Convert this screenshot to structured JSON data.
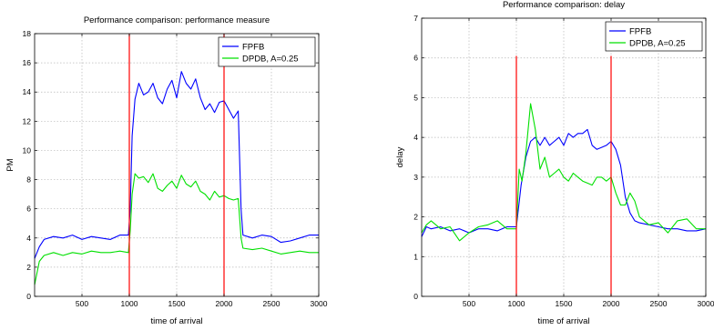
{
  "chart_data": [
    {
      "type": "line",
      "title": "Performance comparison: performance measure",
      "xlabel": "time of arrival",
      "ylabel": "PM",
      "xlim": [
        0,
        3000
      ],
      "ylim": [
        0,
        18
      ],
      "xticks": [
        500,
        1000,
        1500,
        2000,
        2500,
        3000
      ],
      "xtick_labels": [
        "500",
        "1000",
        "1500",
        "2000",
        "2500",
        "3000"
      ],
      "yticks": [
        0,
        2,
        4,
        6,
        8,
        10,
        12,
        14,
        16,
        18
      ],
      "ytick_labels": [
        "0",
        "2",
        "4",
        "6",
        "8",
        "10",
        "12",
        "14",
        "16",
        "18"
      ],
      "grid": true,
      "legend_position": "top-right",
      "vlines": [
        1000,
        2000
      ],
      "vline_color": "#ff0000",
      "series": [
        {
          "name": "FPFB",
          "color": "#0000ff",
          "x": [
            0,
            50,
            100,
            200,
            300,
            400,
            500,
            600,
            700,
            800,
            900,
            990,
            1010,
            1030,
            1060,
            1100,
            1150,
            1200,
            1250,
            1300,
            1350,
            1400,
            1450,
            1500,
            1550,
            1600,
            1650,
            1700,
            1750,
            1800,
            1850,
            1900,
            1950,
            2000,
            2050,
            2100,
            2150,
            2180,
            2200,
            2300,
            2400,
            2500,
            2600,
            2700,
            2800,
            2900,
            3000
          ],
          "y": [
            2.6,
            3.4,
            3.9,
            4.1,
            4.0,
            4.2,
            3.9,
            4.1,
            4.0,
            3.9,
            4.2,
            4.2,
            6.0,
            11.0,
            13.5,
            14.6,
            13.8,
            14.0,
            14.6,
            13.6,
            13.2,
            14.2,
            14.8,
            13.6,
            15.4,
            14.6,
            14.2,
            14.9,
            13.6,
            12.8,
            13.2,
            12.6,
            13.3,
            13.4,
            12.8,
            12.2,
            12.7,
            6.0,
            4.2,
            4.0,
            4.2,
            4.1,
            3.7,
            3.8,
            4.0,
            4.2,
            4.2
          ]
        },
        {
          "name": "DPDB, A=0.25",
          "color": "#00e000",
          "x": [
            0,
            50,
            100,
            200,
            300,
            400,
            500,
            600,
            700,
            800,
            900,
            990,
            1010,
            1030,
            1060,
            1100,
            1150,
            1200,
            1250,
            1300,
            1350,
            1400,
            1450,
            1500,
            1550,
            1600,
            1650,
            1700,
            1750,
            1800,
            1850,
            1900,
            1950,
            2000,
            2050,
            2100,
            2150,
            2180,
            2200,
            2300,
            2400,
            2500,
            2600,
            2700,
            2800,
            2900,
            3000
          ],
          "y": [
            0.8,
            2.4,
            2.8,
            3.0,
            2.8,
            3.0,
            2.9,
            3.1,
            3.0,
            3.0,
            3.1,
            3.0,
            4.5,
            7.0,
            8.4,
            8.1,
            8.2,
            7.8,
            8.4,
            7.4,
            7.2,
            7.6,
            7.9,
            7.4,
            8.3,
            7.7,
            7.5,
            7.9,
            7.2,
            7.0,
            6.6,
            7.2,
            6.8,
            6.9,
            6.7,
            6.6,
            6.7,
            4.0,
            3.3,
            3.2,
            3.3,
            3.1,
            2.9,
            3.0,
            3.1,
            3.0,
            3.0
          ]
        }
      ]
    },
    {
      "type": "line",
      "title": "Performance comparison: delay",
      "xlabel": "time of arrival",
      "ylabel": "delay",
      "xlim": [
        0,
        3000
      ],
      "ylim": [
        0,
        7
      ],
      "xticks": [
        500,
        1000,
        1500,
        2000,
        2500,
        3000
      ],
      "xtick_labels": [
        "500",
        "1000",
        "1500",
        "2000",
        "2500",
        "3000"
      ],
      "yticks": [
        0,
        1,
        2,
        3,
        4,
        5,
        6,
        7
      ],
      "ytick_labels": [
        "0",
        "1",
        "2",
        "3",
        "4",
        "5",
        "6",
        "7"
      ],
      "grid": true,
      "legend_position": "top-right",
      "vlines": [
        1000,
        2000
      ],
      "vline_ymax": 6.05,
      "vline_color": "#ff0000",
      "series": [
        {
          "name": "FPFB",
          "color": "#0000ff",
          "x": [
            0,
            50,
            100,
            200,
            300,
            400,
            500,
            600,
            700,
            800,
            900,
            1000,
            1050,
            1100,
            1150,
            1200,
            1250,
            1300,
            1350,
            1400,
            1450,
            1500,
            1550,
            1600,
            1650,
            1700,
            1750,
            1800,
            1850,
            1900,
            1950,
            2000,
            2050,
            2100,
            2150,
            2200,
            2250,
            2300,
            2400,
            2500,
            2600,
            2700,
            2800,
            2900,
            3000
          ],
          "y": [
            1.5,
            1.75,
            1.7,
            1.75,
            1.65,
            1.7,
            1.6,
            1.7,
            1.7,
            1.65,
            1.75,
            1.75,
            2.8,
            3.5,
            3.9,
            4.0,
            3.8,
            4.0,
            3.8,
            3.9,
            4.0,
            3.8,
            4.1,
            4.0,
            4.1,
            4.1,
            4.2,
            3.8,
            3.7,
            3.75,
            3.8,
            3.9,
            3.7,
            3.3,
            2.5,
            2.1,
            1.9,
            1.85,
            1.8,
            1.75,
            1.7,
            1.7,
            1.65,
            1.65,
            1.7
          ]
        },
        {
          "name": "DPDB, A=0.25",
          "color": "#00e000",
          "x": [
            0,
            50,
            100,
            200,
            300,
            400,
            500,
            600,
            700,
            800,
            900,
            1000,
            1030,
            1060,
            1100,
            1150,
            1200,
            1250,
            1300,
            1350,
            1400,
            1450,
            1500,
            1550,
            1600,
            1650,
            1700,
            1750,
            1800,
            1850,
            1900,
            1950,
            2000,
            2050,
            2100,
            2150,
            2200,
            2250,
            2300,
            2400,
            2500,
            2600,
            2700,
            2800,
            2900,
            3000
          ],
          "y": [
            1.6,
            1.8,
            1.9,
            1.7,
            1.75,
            1.4,
            1.6,
            1.75,
            1.8,
            1.9,
            1.7,
            1.7,
            3.2,
            2.9,
            3.6,
            4.85,
            4.2,
            3.2,
            3.5,
            3.0,
            3.1,
            3.2,
            3.0,
            2.9,
            3.1,
            3.0,
            2.9,
            2.85,
            2.8,
            3.0,
            3.0,
            2.9,
            3.0,
            2.6,
            2.3,
            2.3,
            2.6,
            2.4,
            2.0,
            1.8,
            1.85,
            1.6,
            1.9,
            1.95,
            1.7,
            1.7
          ]
        }
      ]
    }
  ]
}
